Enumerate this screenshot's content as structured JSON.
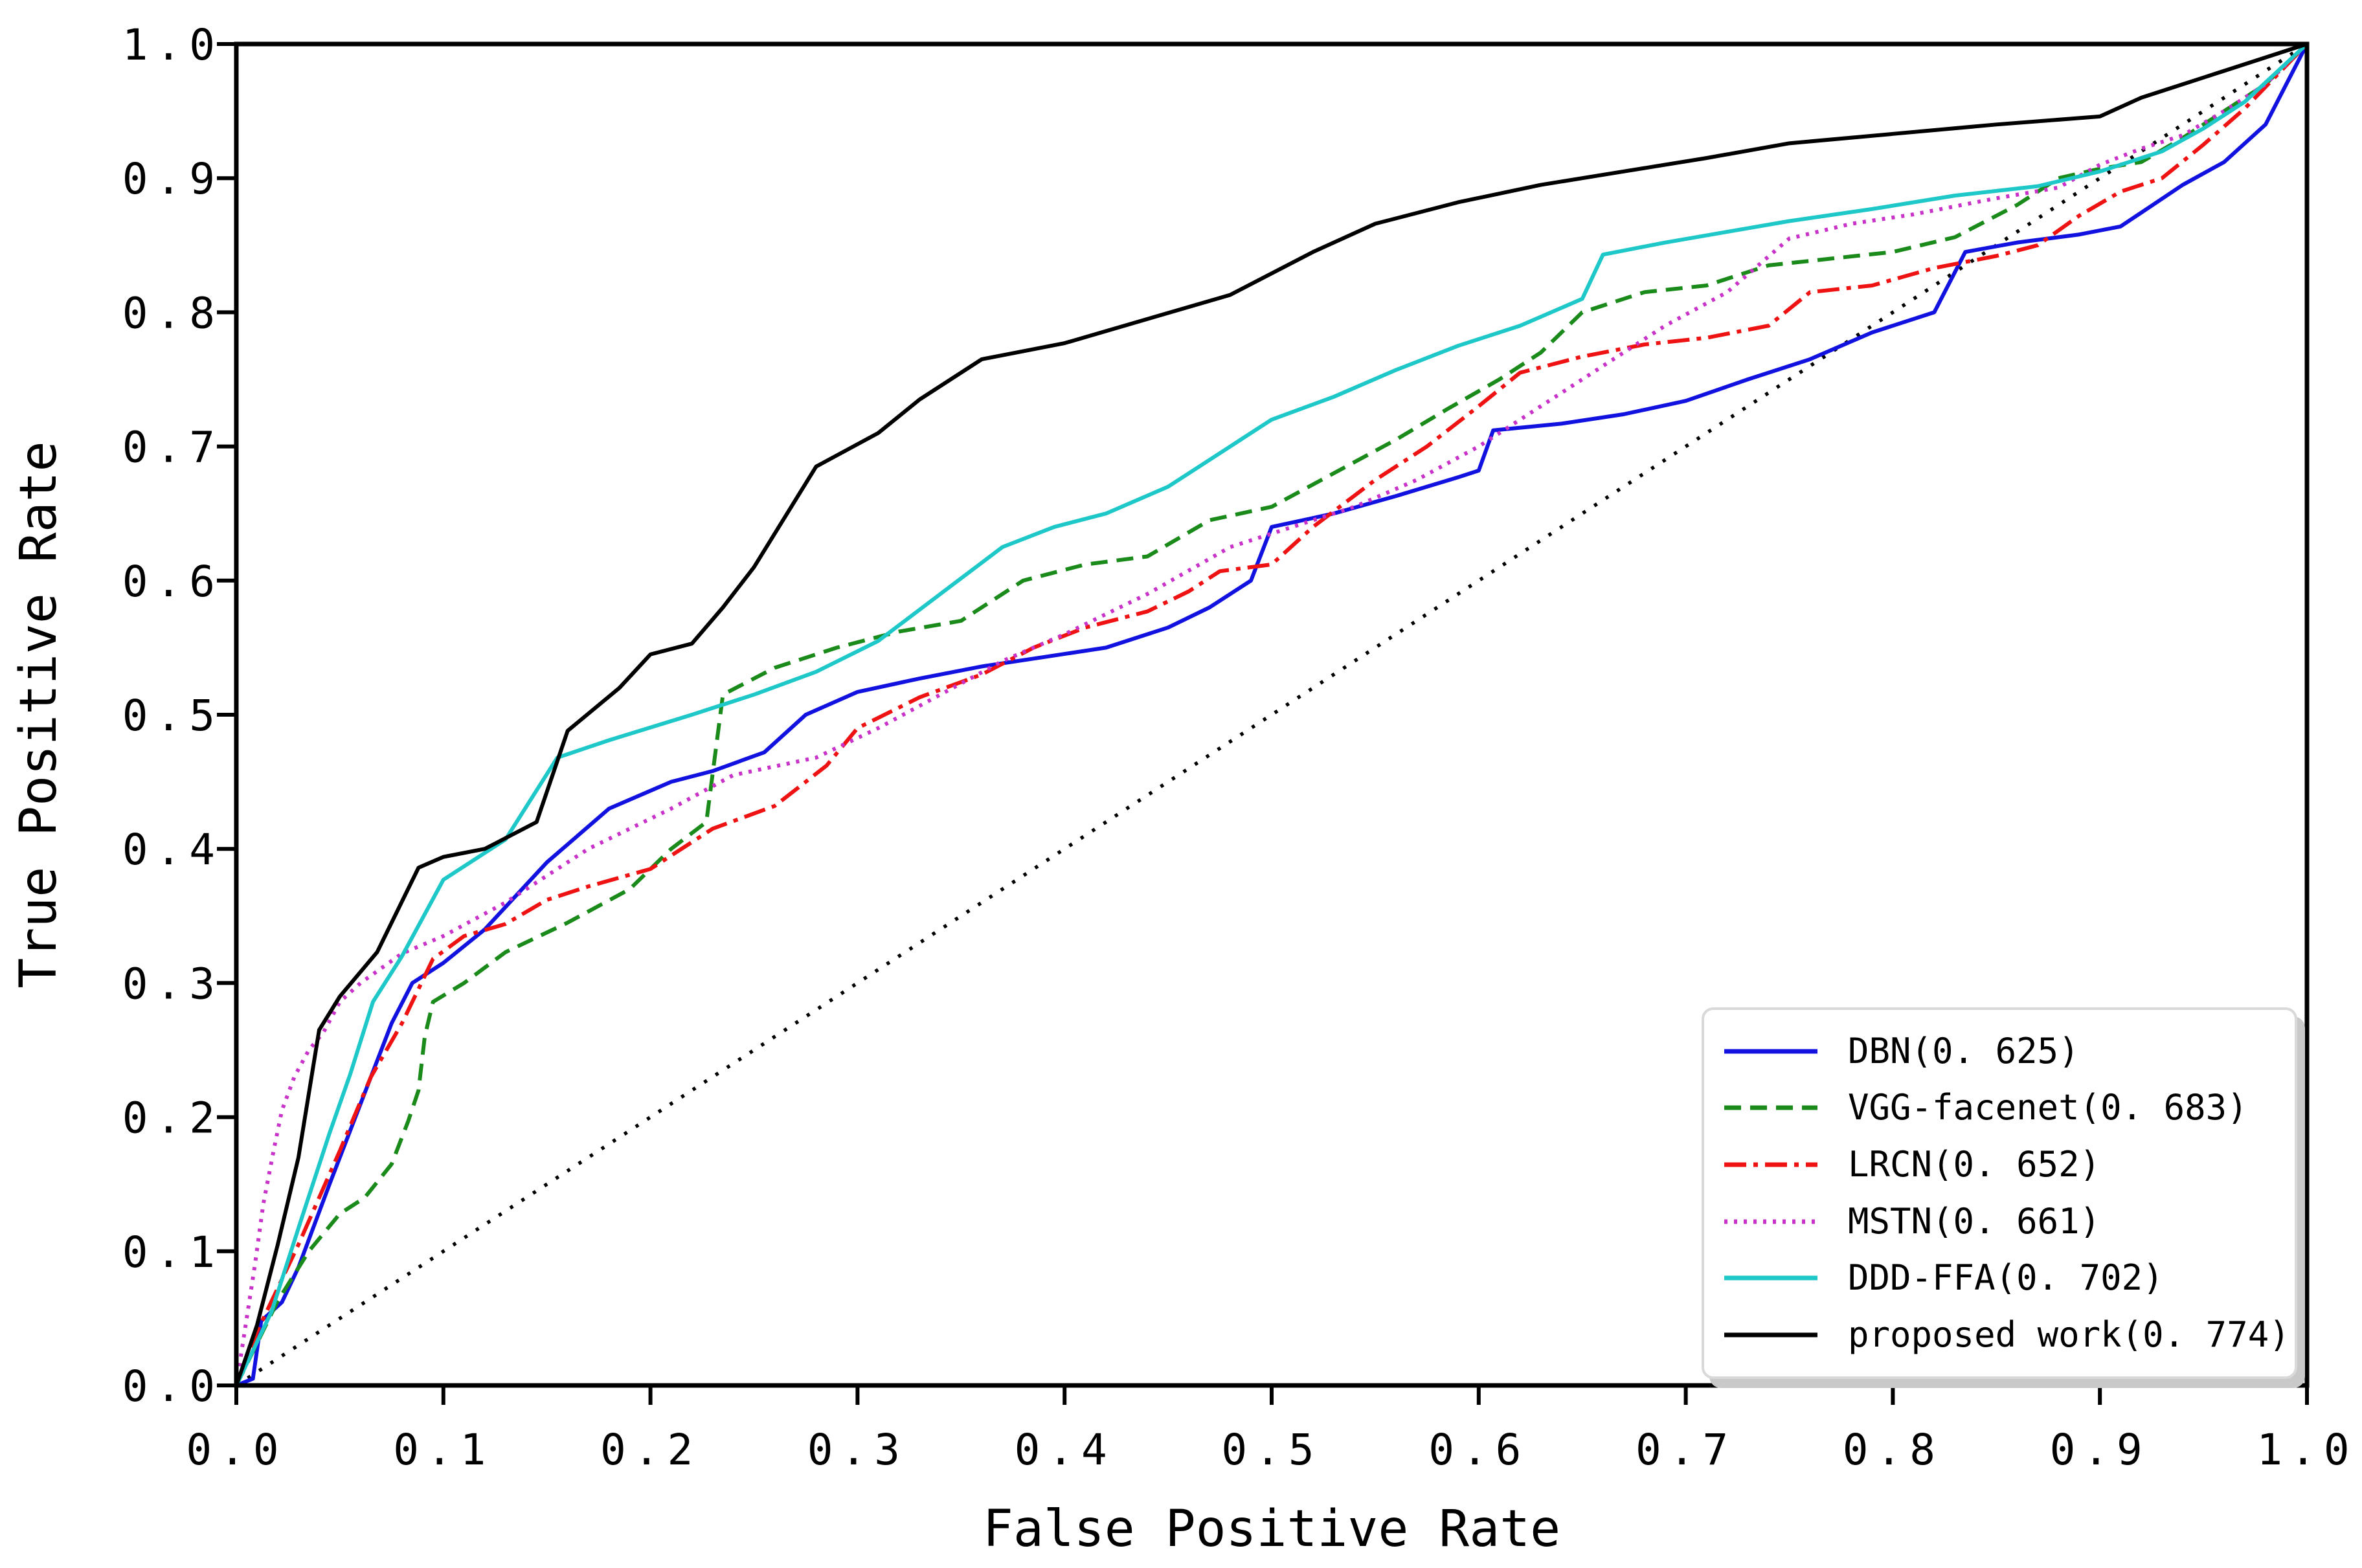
{
  "figure": {
    "background": "#ffffff"
  },
  "chart_data": {
    "type": "line",
    "subtype": "roc-curves",
    "title": "",
    "xlabel": "False Positive Rate",
    "ylabel": "True Positive Rate",
    "xlim": [
      0.0,
      1.0
    ],
    "ylim": [
      0.0,
      1.0
    ],
    "x_ticks": [
      "0.0",
      "0.1",
      "0.2",
      "0.3",
      "0.4",
      "0.5",
      "0.6",
      "0.7",
      "0.8",
      "0.9",
      "1.0"
    ],
    "y_ticks": [
      "0.0",
      "0.1",
      "0.2",
      "0.3",
      "0.4",
      "0.5",
      "0.6",
      "0.7",
      "0.8",
      "0.9",
      "1.0"
    ],
    "grid": false,
    "legend_position": "lower right",
    "series": [
      {
        "name": "DBN",
        "legend_label": "DBN(0. 625)",
        "auc": 0.625,
        "color": "#1212e0",
        "line_style": "solid",
        "points": [
          [
            0,
            0
          ],
          [
            0.008,
            0.005
          ],
          [
            0.012,
            0.048
          ],
          [
            0.022,
            0.062
          ],
          [
            0.03,
            0.088
          ],
          [
            0.045,
            0.15
          ],
          [
            0.06,
            0.21
          ],
          [
            0.075,
            0.27
          ],
          [
            0.085,
            0.3
          ],
          [
            0.1,
            0.315
          ],
          [
            0.12,
            0.34
          ],
          [
            0.15,
            0.39
          ],
          [
            0.18,
            0.43
          ],
          [
            0.21,
            0.45
          ],
          [
            0.23,
            0.458
          ],
          [
            0.255,
            0.472
          ],
          [
            0.275,
            0.5
          ],
          [
            0.3,
            0.517
          ],
          [
            0.33,
            0.527
          ],
          [
            0.36,
            0.536
          ],
          [
            0.39,
            0.543
          ],
          [
            0.42,
            0.55
          ],
          [
            0.45,
            0.565
          ],
          [
            0.47,
            0.58
          ],
          [
            0.49,
            0.6
          ],
          [
            0.5,
            0.64
          ],
          [
            0.53,
            0.65
          ],
          [
            0.56,
            0.663
          ],
          [
            0.59,
            0.677
          ],
          [
            0.6,
            0.682
          ],
          [
            0.607,
            0.712
          ],
          [
            0.64,
            0.717
          ],
          [
            0.67,
            0.724
          ],
          [
            0.7,
            0.734
          ],
          [
            0.73,
            0.75
          ],
          [
            0.76,
            0.765
          ],
          [
            0.79,
            0.785
          ],
          [
            0.82,
            0.8
          ],
          [
            0.835,
            0.845
          ],
          [
            0.86,
            0.852
          ],
          [
            0.89,
            0.858
          ],
          [
            0.91,
            0.864
          ],
          [
            0.94,
            0.895
          ],
          [
            0.96,
            0.912
          ],
          [
            0.98,
            0.94
          ],
          [
            1,
            1
          ]
        ]
      },
      {
        "name": "VGG-facenet",
        "legend_label": "VGG-facenet(0. 683)",
        "auc": 0.683,
        "color": "#1a8a1a",
        "line_style": "dashed",
        "points": [
          [
            0,
            0
          ],
          [
            0.02,
            0.063
          ],
          [
            0.035,
            0.1
          ],
          [
            0.05,
            0.128
          ],
          [
            0.062,
            0.14
          ],
          [
            0.075,
            0.165
          ],
          [
            0.083,
            0.197
          ],
          [
            0.088,
            0.22
          ],
          [
            0.091,
            0.26
          ],
          [
            0.095,
            0.286
          ],
          [
            0.11,
            0.3
          ],
          [
            0.13,
            0.323
          ],
          [
            0.16,
            0.345
          ],
          [
            0.19,
            0.37
          ],
          [
            0.21,
            0.4
          ],
          [
            0.227,
            0.42
          ],
          [
            0.235,
            0.515
          ],
          [
            0.26,
            0.535
          ],
          [
            0.29,
            0.55
          ],
          [
            0.32,
            0.562
          ],
          [
            0.35,
            0.57
          ],
          [
            0.38,
            0.6
          ],
          [
            0.41,
            0.612
          ],
          [
            0.44,
            0.618
          ],
          [
            0.47,
            0.645
          ],
          [
            0.5,
            0.655
          ],
          [
            0.53,
            0.68
          ],
          [
            0.56,
            0.705
          ],
          [
            0.585,
            0.728
          ],
          [
            0.61,
            0.75
          ],
          [
            0.63,
            0.77
          ],
          [
            0.65,
            0.8
          ],
          [
            0.68,
            0.815
          ],
          [
            0.71,
            0.82
          ],
          [
            0.74,
            0.835
          ],
          [
            0.77,
            0.84
          ],
          [
            0.8,
            0.845
          ],
          [
            0.83,
            0.856
          ],
          [
            0.86,
            0.88
          ],
          [
            0.88,
            0.9
          ],
          [
            0.9,
            0.907
          ],
          [
            0.92,
            0.912
          ],
          [
            0.94,
            0.93
          ],
          [
            0.96,
            0.95
          ],
          [
            0.98,
            0.97
          ],
          [
            1,
            1
          ]
        ]
      },
      {
        "name": "LRCN",
        "legend_label": "LRCN(0. 652)",
        "auc": 0.652,
        "color": "#ee1212",
        "line_style": "dashdot",
        "points": [
          [
            0,
            0
          ],
          [
            0.01,
            0.04
          ],
          [
            0.03,
            0.105
          ],
          [
            0.05,
            0.175
          ],
          [
            0.065,
            0.23
          ],
          [
            0.08,
            0.27
          ],
          [
            0.095,
            0.318
          ],
          [
            0.11,
            0.335
          ],
          [
            0.13,
            0.344
          ],
          [
            0.15,
            0.362
          ],
          [
            0.17,
            0.372
          ],
          [
            0.2,
            0.385
          ],
          [
            0.23,
            0.415
          ],
          [
            0.26,
            0.432
          ],
          [
            0.285,
            0.462
          ],
          [
            0.3,
            0.49
          ],
          [
            0.33,
            0.513
          ],
          [
            0.36,
            0.53
          ],
          [
            0.385,
            0.55
          ],
          [
            0.41,
            0.565
          ],
          [
            0.44,
            0.577
          ],
          [
            0.46,
            0.592
          ],
          [
            0.475,
            0.607
          ],
          [
            0.5,
            0.612
          ],
          [
            0.52,
            0.64
          ],
          [
            0.55,
            0.675
          ],
          [
            0.575,
            0.7
          ],
          [
            0.6,
            0.73
          ],
          [
            0.62,
            0.755
          ],
          [
            0.65,
            0.767
          ],
          [
            0.68,
            0.776
          ],
          [
            0.71,
            0.781
          ],
          [
            0.74,
            0.79
          ],
          [
            0.76,
            0.815
          ],
          [
            0.79,
            0.82
          ],
          [
            0.82,
            0.833
          ],
          [
            0.85,
            0.842
          ],
          [
            0.87,
            0.85
          ],
          [
            0.89,
            0.872
          ],
          [
            0.91,
            0.89
          ],
          [
            0.93,
            0.9
          ],
          [
            0.95,
            0.925
          ],
          [
            0.97,
            0.952
          ],
          [
            1,
            1
          ]
        ]
      },
      {
        "name": "MSTN",
        "legend_label": "MSTN(0. 661)",
        "auc": 0.661,
        "color": "#c832c8",
        "line_style": "dotted",
        "points": [
          [
            0,
            0
          ],
          [
            0.005,
            0.05
          ],
          [
            0.009,
            0.09
          ],
          [
            0.013,
            0.135
          ],
          [
            0.018,
            0.175
          ],
          [
            0.022,
            0.205
          ],
          [
            0.028,
            0.23
          ],
          [
            0.035,
            0.25
          ],
          [
            0.042,
            0.263
          ],
          [
            0.05,
            0.286
          ],
          [
            0.06,
            0.3
          ],
          [
            0.08,
            0.322
          ],
          [
            0.1,
            0.335
          ],
          [
            0.13,
            0.36
          ],
          [
            0.17,
            0.4
          ],
          [
            0.21,
            0.43
          ],
          [
            0.24,
            0.455
          ],
          [
            0.28,
            0.468
          ],
          [
            0.31,
            0.49
          ],
          [
            0.34,
            0.515
          ],
          [
            0.37,
            0.54
          ],
          [
            0.4,
            0.56
          ],
          [
            0.44,
            0.59
          ],
          [
            0.48,
            0.625
          ],
          [
            0.51,
            0.64
          ],
          [
            0.54,
            0.655
          ],
          [
            0.57,
            0.675
          ],
          [
            0.6,
            0.7
          ],
          [
            0.63,
            0.73
          ],
          [
            0.66,
            0.76
          ],
          [
            0.69,
            0.79
          ],
          [
            0.72,
            0.815
          ],
          [
            0.75,
            0.855
          ],
          [
            0.78,
            0.866
          ],
          [
            0.81,
            0.873
          ],
          [
            0.85,
            0.885
          ],
          [
            0.88,
            0.893
          ],
          [
            0.9,
            0.91
          ],
          [
            0.92,
            0.922
          ],
          [
            0.94,
            0.932
          ],
          [
            0.96,
            0.95
          ],
          [
            0.98,
            0.97
          ],
          [
            1,
            1
          ]
        ]
      },
      {
        "name": "DDD-FFA",
        "legend_label": "DDD-FFA(0. 702)",
        "auc": 0.702,
        "color": "#1ec8c8",
        "line_style": "solid",
        "points": [
          [
            0,
            0
          ],
          [
            0.017,
            0.055
          ],
          [
            0.031,
            0.122
          ],
          [
            0.045,
            0.188
          ],
          [
            0.055,
            0.232
          ],
          [
            0.066,
            0.286
          ],
          [
            0.08,
            0.32
          ],
          [
            0.1,
            0.377
          ],
          [
            0.13,
            0.407
          ],
          [
            0.155,
            0.468
          ],
          [
            0.18,
            0.481
          ],
          [
            0.22,
            0.5
          ],
          [
            0.25,
            0.515
          ],
          [
            0.28,
            0.532
          ],
          [
            0.31,
            0.555
          ],
          [
            0.34,
            0.59
          ],
          [
            0.37,
            0.625
          ],
          [
            0.395,
            0.64
          ],
          [
            0.42,
            0.65
          ],
          [
            0.45,
            0.67
          ],
          [
            0.48,
            0.7
          ],
          [
            0.5,
            0.72
          ],
          [
            0.53,
            0.737
          ],
          [
            0.56,
            0.757
          ],
          [
            0.59,
            0.775
          ],
          [
            0.62,
            0.79
          ],
          [
            0.65,
            0.81
          ],
          [
            0.66,
            0.843
          ],
          [
            0.69,
            0.852
          ],
          [
            0.72,
            0.86
          ],
          [
            0.75,
            0.868
          ],
          [
            0.79,
            0.877
          ],
          [
            0.83,
            0.887
          ],
          [
            0.87,
            0.894
          ],
          [
            0.9,
            0.905
          ],
          [
            0.93,
            0.92
          ],
          [
            0.95,
            0.937
          ],
          [
            0.97,
            0.957
          ],
          [
            1,
            1
          ]
        ]
      },
      {
        "name": "proposed work",
        "legend_label": "proposed work(0. 774)",
        "auc": 0.774,
        "color": "#000000",
        "line_style": "solid",
        "points": [
          [
            0,
            0
          ],
          [
            0.01,
            0.045
          ],
          [
            0.02,
            0.105
          ],
          [
            0.03,
            0.17
          ],
          [
            0.04,
            0.265
          ],
          [
            0.05,
            0.29
          ],
          [
            0.068,
            0.323
          ],
          [
            0.088,
            0.386
          ],
          [
            0.1,
            0.394
          ],
          [
            0.12,
            0.4
          ],
          [
            0.145,
            0.42
          ],
          [
            0.16,
            0.488
          ],
          [
            0.185,
            0.52
          ],
          [
            0.2,
            0.545
          ],
          [
            0.22,
            0.553
          ],
          [
            0.235,
            0.58
          ],
          [
            0.25,
            0.61
          ],
          [
            0.28,
            0.685
          ],
          [
            0.31,
            0.71
          ],
          [
            0.33,
            0.735
          ],
          [
            0.36,
            0.765
          ],
          [
            0.4,
            0.777
          ],
          [
            0.44,
            0.795
          ],
          [
            0.48,
            0.813
          ],
          [
            0.52,
            0.845
          ],
          [
            0.55,
            0.866
          ],
          [
            0.59,
            0.882
          ],
          [
            0.63,
            0.895
          ],
          [
            0.67,
            0.905
          ],
          [
            0.71,
            0.915
          ],
          [
            0.75,
            0.926
          ],
          [
            0.8,
            0.933
          ],
          [
            0.85,
            0.94
          ],
          [
            0.9,
            0.946
          ],
          [
            0.92,
            0.96
          ],
          [
            0.95,
            0.975
          ],
          [
            0.98,
            0.99
          ],
          [
            1,
            1
          ]
        ]
      }
    ],
    "reference_line": {
      "name": "chance-diagonal",
      "color": "#000000",
      "line_style": "dotted-sparse",
      "points": [
        [
          0,
          0
        ],
        [
          1,
          1
        ]
      ]
    }
  }
}
